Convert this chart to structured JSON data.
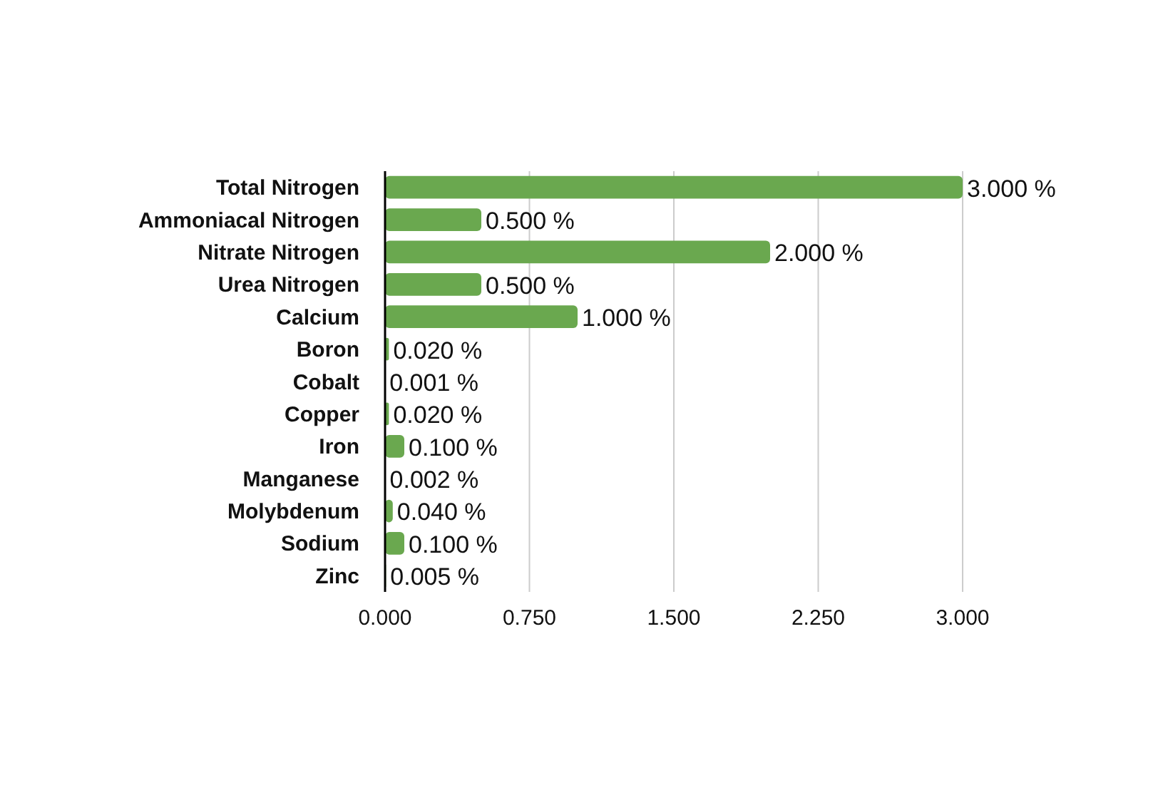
{
  "chart_data": {
    "type": "bar",
    "orientation": "horizontal",
    "categories": [
      "Total Nitrogen",
      "Ammoniacal Nitrogen",
      "Nitrate Nitrogen",
      "Urea Nitrogen",
      "Calcium",
      "Boron",
      "Cobalt",
      "Copper",
      "Iron",
      "Manganese",
      "Molybdenum",
      "Sodium",
      "Zinc"
    ],
    "values": [
      3.0,
      0.5,
      2.0,
      0.5,
      1.0,
      0.02,
      0.001,
      0.02,
      0.1,
      0.002,
      0.04,
      0.1,
      0.005
    ],
    "value_labels": [
      "3.000 %",
      "0.500 %",
      "2.000 %",
      "0.500 %",
      "1.000 %",
      "0.020 %",
      "0.001 %",
      "0.020 %",
      "0.100 %",
      "0.002 %",
      "0.040 %",
      "0.100 %",
      "0.005 %"
    ],
    "color": "#6aa84f",
    "xlim": [
      0,
      3
    ],
    "xticks": [
      {
        "value": 0,
        "label": "0.000"
      },
      {
        "value": 0.75,
        "label": "0.750"
      },
      {
        "value": 1.5,
        "label": "1.500"
      },
      {
        "value": 2.25,
        "label": "2.250"
      },
      {
        "value": 3,
        "label": "3.000"
      }
    ],
    "grid": "x"
  }
}
